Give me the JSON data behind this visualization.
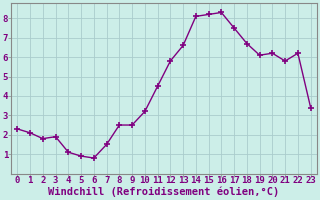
{
  "x": [
    0,
    1,
    2,
    3,
    4,
    5,
    6,
    7,
    8,
    9,
    10,
    11,
    12,
    13,
    14,
    15,
    16,
    17,
    18,
    19,
    20,
    21,
    22,
    23
  ],
  "y": [
    2.3,
    2.1,
    1.8,
    1.9,
    1.1,
    0.9,
    0.8,
    1.5,
    2.5,
    2.5,
    3.2,
    4.5,
    5.8,
    6.6,
    8.1,
    8.2,
    8.3,
    7.5,
    6.7,
    6.1,
    6.2,
    5.8,
    6.2,
    3.4
  ],
  "line_color": "#800080",
  "marker": "+",
  "markersize": 4,
  "markeredgewidth": 1.2,
  "linewidth": 1.0,
  "bg_color": "#cceee8",
  "grid_color": "#aacccc",
  "xlabel": "Windchill (Refroidissement éolien,°C)",
  "xlim": [
    -0.5,
    23.5
  ],
  "ylim": [
    0,
    8.8
  ],
  "yticks": [
    1,
    2,
    3,
    4,
    5,
    6,
    7,
    8
  ],
  "xtick_labels": [
    "0",
    "1",
    "2",
    "3",
    "4",
    "5",
    "6",
    "7",
    "8",
    "9",
    "10",
    "11",
    "12",
    "13",
    "14",
    "15",
    "16",
    "17",
    "18",
    "19",
    "20",
    "21",
    "22",
    "23"
  ],
  "tick_color": "#800080",
  "label_fontsize": 6.5,
  "xlabel_fontsize": 7.5,
  "spine_color": "#888888"
}
